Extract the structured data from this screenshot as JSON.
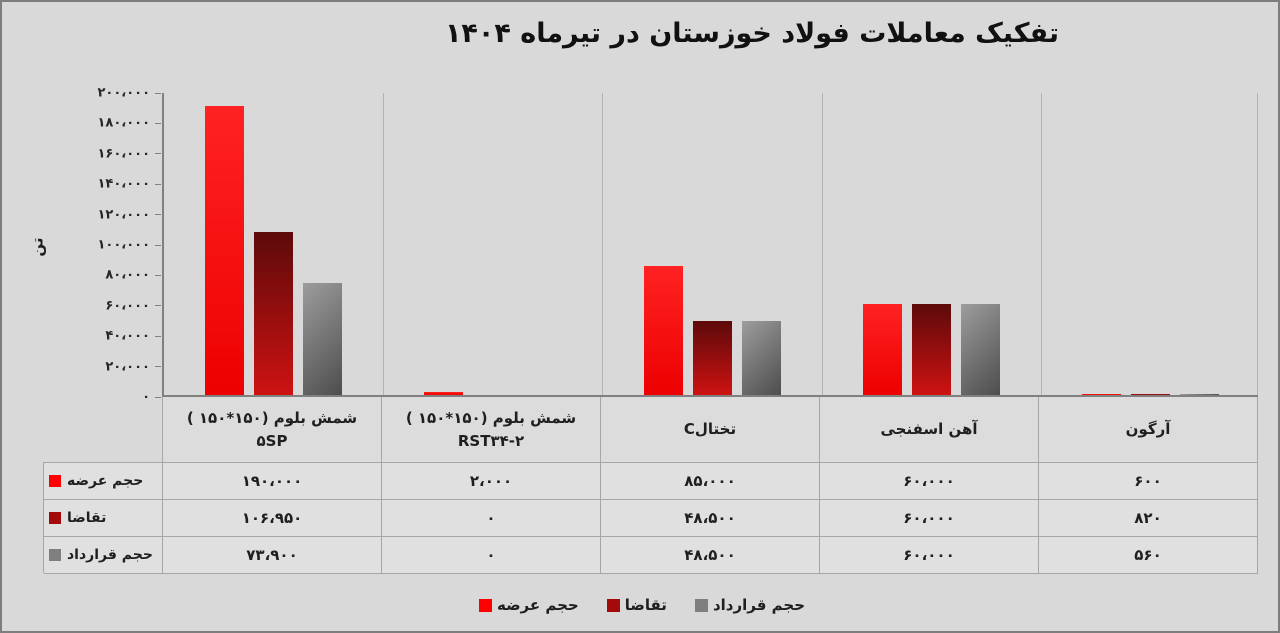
{
  "title": "تفکیک معاملات فولاد خوزستان در تیرماه ۱۴۰۴",
  "y_axis": {
    "unit_label": "تن",
    "ticks": [
      "۲۰۰،۰۰۰",
      "۱۸۰،۰۰۰",
      "۱۶۰،۰۰۰",
      "۱۴۰،۰۰۰",
      "۱۲۰،۰۰۰",
      "۱۰۰،۰۰۰",
      "۸۰،۰۰۰",
      "۶۰،۰۰۰",
      "۴۰،۰۰۰",
      "۲۰،۰۰۰",
      "۰"
    ]
  },
  "chart_data": {
    "type": "bar",
    "title": "تفکیک معاملات فولاد خوزستان در تیرماه ۱۴۰۴",
    "categories": [
      "شمش بلوم (۱۵۰*۱۵۰) ۵SP",
      "شمش بلوم (۱۵۰*۱۵۰) RST۳۴-۲",
      "تختالC",
      "آهن اسفنجی",
      "آرگون"
    ],
    "category_cells": [
      {
        "lines": [
          {
            "text": "شمش بلوم (۱۵۰*۱۵۰ )",
            "dir": "rtl"
          },
          {
            "text": "۵SP",
            "dir": "ltr"
          }
        ]
      },
      {
        "lines": [
          {
            "text": "شمش بلوم (۱۵۰*۱۵۰ )",
            "dir": "rtl"
          },
          {
            "text": "RST۳۴-۲",
            "dir": "ltr"
          }
        ]
      },
      {
        "lines": [
          {
            "text": "تختالC",
            "dir": "rtl"
          }
        ]
      },
      {
        "lines": [
          {
            "text": "آهن اسفنجی",
            "dir": "rtl"
          }
        ]
      },
      {
        "lines": [
          {
            "text": "آرگون",
            "dir": "rtl"
          }
        ]
      }
    ],
    "series": [
      {
        "id": "supply",
        "name": "حجم عرضه",
        "values": [
          190000,
          2000,
          85000,
          60000,
          600
        ],
        "display": [
          "۱۹۰،۰۰۰",
          "۲،۰۰۰",
          "۸۵،۰۰۰",
          "۶۰،۰۰۰",
          "۶۰۰"
        ],
        "swatch": "#ff0000",
        "bar_gradient": {
          "dir": "180deg",
          "from": "#ff2222",
          "to": "#ed0000"
        }
      },
      {
        "id": "demand",
        "name": "تقاضا",
        "values": [
          106950,
          0,
          48500,
          60000,
          820
        ],
        "display": [
          "۱۰۶،۹۵۰",
          "۰",
          "۴۸،۵۰۰",
          "۶۰،۰۰۰",
          "۸۲۰"
        ],
        "swatch": "#a30b0b",
        "bar_gradient": {
          "dir": "180deg",
          "from": "#5d0a0a",
          "to": "#ce1212"
        }
      },
      {
        "id": "contract",
        "name": "حجم قرارداد",
        "values": [
          73900,
          0,
          48500,
          60000,
          560
        ],
        "display": [
          "۷۳،۹۰۰",
          "۰",
          "۴۸،۵۰۰",
          "۶۰،۰۰۰",
          "۵۶۰"
        ],
        "swatch": "#7f7f7f",
        "bar_gradient": {
          "dir": "135deg",
          "from": "#9d9d9d",
          "to": "#4d4d4d"
        }
      }
    ],
    "ylim": [
      0,
      200000
    ],
    "y_tick_step": 20000,
    "ylabel": "تن",
    "legend_position": "bottom",
    "grid": "vertical-category-separators-only"
  },
  "legend": {
    "items": [
      "حجم عرضه",
      "تقاضا",
      "حجم قرارداد"
    ]
  }
}
